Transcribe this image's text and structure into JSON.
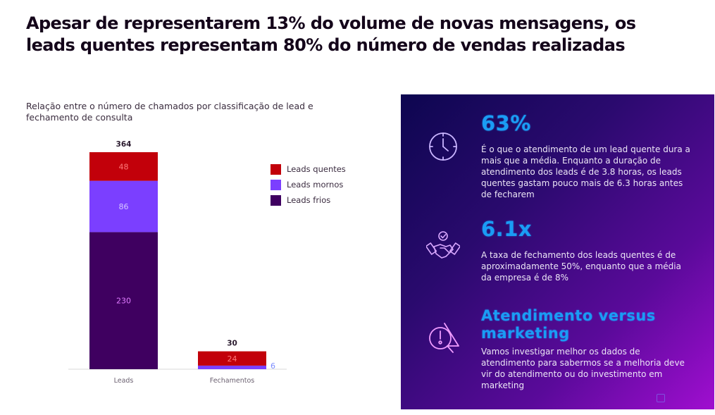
{
  "headline": "Apesar de representarem 13% do volume de novas mensagens, os leads quentes representam 80% do número de vendas realizadas",
  "chart_data": {
    "type": "bar",
    "stacked": true,
    "title": "Relação entre o número de chamados por classificação de lead e fechamento de consulta",
    "xlabel": "",
    "ylabel": "",
    "categories": [
      "Leads",
      "Fechamentos"
    ],
    "series": [
      {
        "name": "Leads frios",
        "color": "#3f0060",
        "values": [
          230,
          0
        ]
      },
      {
        "name": "Leads mornos",
        "color": "#7b3fff",
        "values": [
          86,
          6
        ]
      },
      {
        "name": "Leads quentes",
        "color": "#c2000a",
        "values": [
          48,
          24
        ]
      }
    ],
    "totals": [
      364,
      30
    ],
    "data_labels": [
      {
        "category": "Leads",
        "series": "Leads quentes",
        "text": "48"
      },
      {
        "category": "Leads",
        "series": "Leads mornos",
        "text": "86"
      },
      {
        "category": "Leads",
        "series": "Leads frios",
        "text": "230"
      },
      {
        "category": "Fechamentos",
        "series": "Leads quentes",
        "text": "24"
      },
      {
        "category": "Fechamentos",
        "series": "Leads mornos",
        "text": "6"
      }
    ],
    "legend": [
      "Leads quentes",
      "Leads mornos",
      "Leads frios"
    ],
    "legend_position": "right",
    "ylim": [
      0,
      364
    ],
    "grid": false
  },
  "panel": {
    "blocks": [
      {
        "icon": "clock-icon",
        "title": "63%",
        "text": "É o que o atendimento de um lead quente dura a mais que a média. Enquanto a duração de atendimento dos leads é de 3.8 horas, os leads quentes gastam pouco mais de 6.3 horas antes de fecharem"
      },
      {
        "icon": "handshake-icon",
        "title": "6.1x",
        "text": "A taxa de fechamento dos leads quentes é de aproximadamente 50%, enquanto que a média da empresa é de 8%"
      },
      {
        "icon": "warning-search-icon",
        "title": "Atendimento versus marketing",
        "text": "Vamos investigar melhor os dados de atendimento para sabermos se a melhoria deve vir do atendimento ou do investimento em marketing"
      }
    ]
  }
}
